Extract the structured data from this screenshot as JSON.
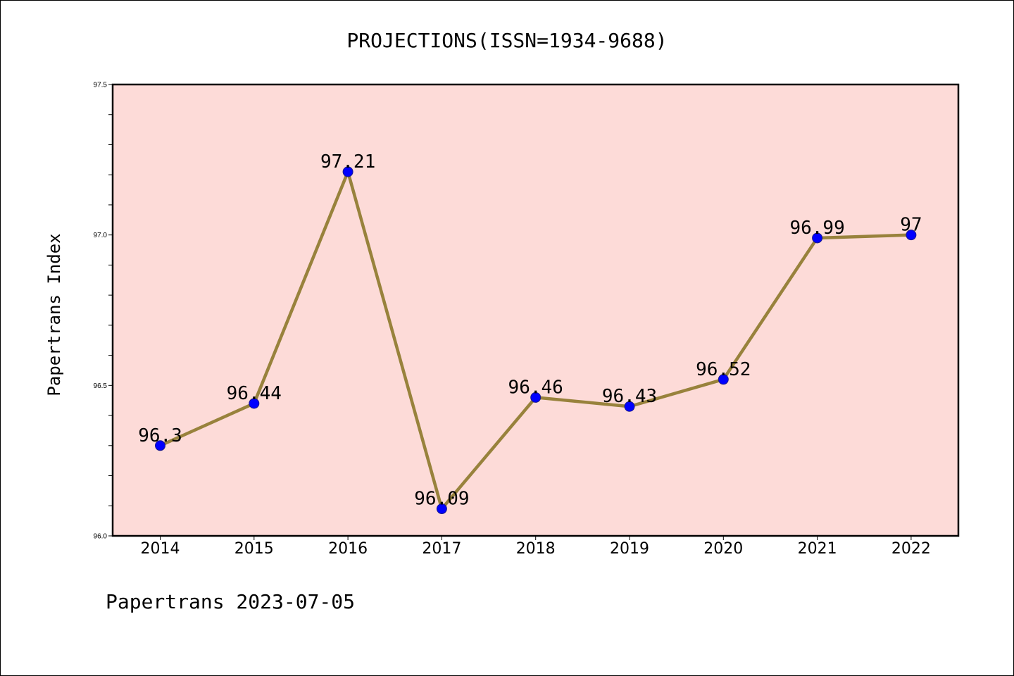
{
  "colors": {
    "plot_background": "#fddbd8",
    "line": "#98823c",
    "marker": "#0000ff",
    "marker_edge": "#1a1a8c"
  },
  "chart_data": {
    "type": "line",
    "title": "PROJECTIONS(ISSN=1934-9688)",
    "xlabel": "",
    "ylabel": "Papertrans Index",
    "categories": [
      "2014",
      "2015",
      "2016",
      "2017",
      "2018",
      "2019",
      "2020",
      "2021",
      "2022"
    ],
    "series": [
      {
        "values": [
          96.3,
          96.44,
          97.21,
          96.09,
          96.46,
          96.43,
          96.52,
          96.99,
          97
        ],
        "data_labels": [
          "96.3",
          "96.44",
          "97.21",
          "96.09",
          "96.46",
          "96.43",
          "96.52",
          "96.99",
          "97"
        ]
      }
    ],
    "ylim": [
      96.0,
      97.5
    ],
    "yticks": [
      "96.0",
      "96.5",
      "97.0",
      "97.5"
    ],
    "grid": false,
    "legend": "none"
  },
  "footer": "Papertrans 2023-07-05"
}
